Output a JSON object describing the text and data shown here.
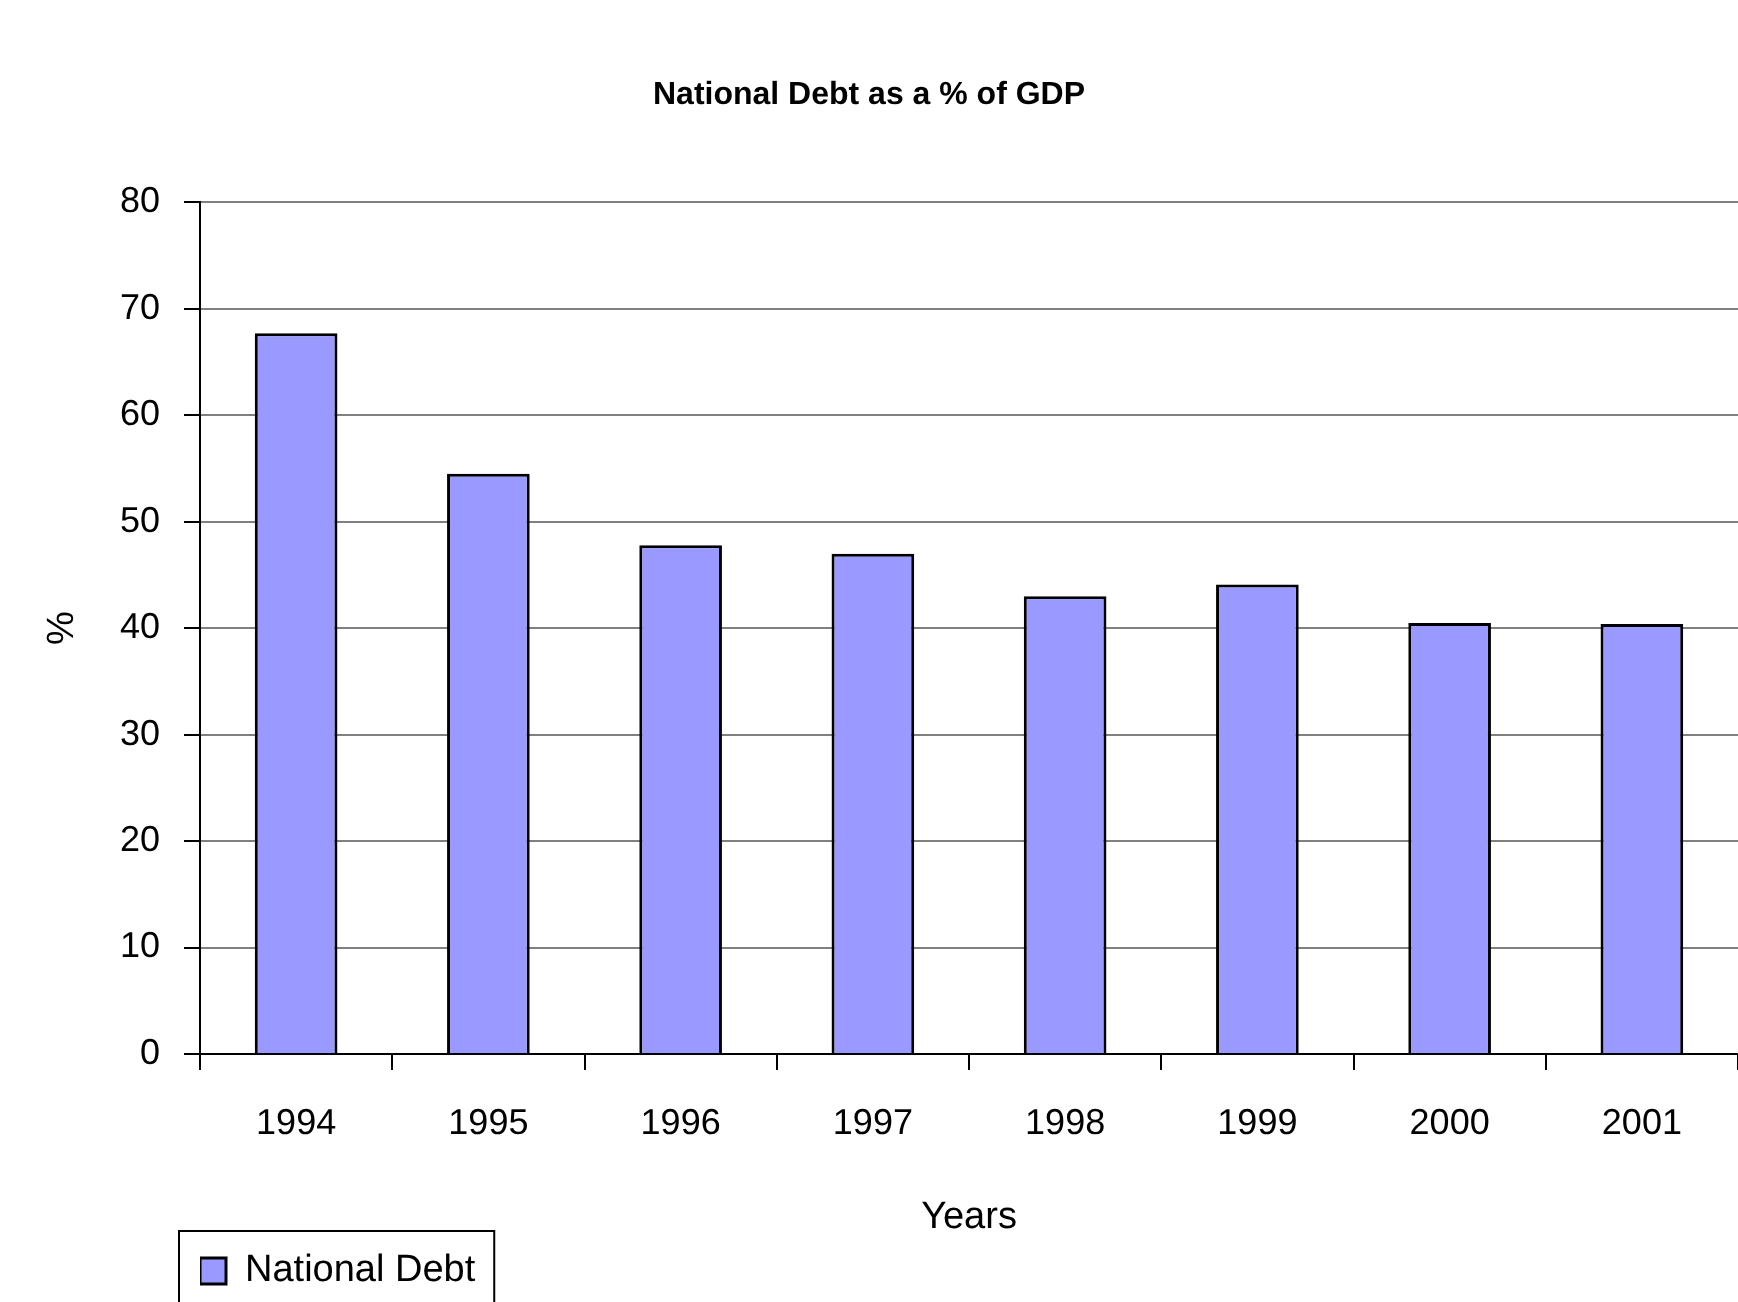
{
  "chart_data": {
    "type": "bar",
    "title": "National Debt as a % of GDP",
    "xlabel": "Years",
    "ylabel": "%",
    "categories": [
      "1994",
      "1995",
      "1996",
      "1997",
      "1998",
      "1999",
      "2000",
      "2001"
    ],
    "series": [
      {
        "name": "National Debt",
        "color": "#9999ff",
        "values": [
          67.7,
          54.5,
          47.8,
          47.0,
          43.0,
          44.1,
          40.5,
          40.4
        ]
      }
    ],
    "ylim": [
      0,
      80
    ],
    "yticks": [
      0,
      10,
      20,
      30,
      40,
      50,
      60,
      70,
      80
    ],
    "grid": "y",
    "legend": "bottom left"
  }
}
